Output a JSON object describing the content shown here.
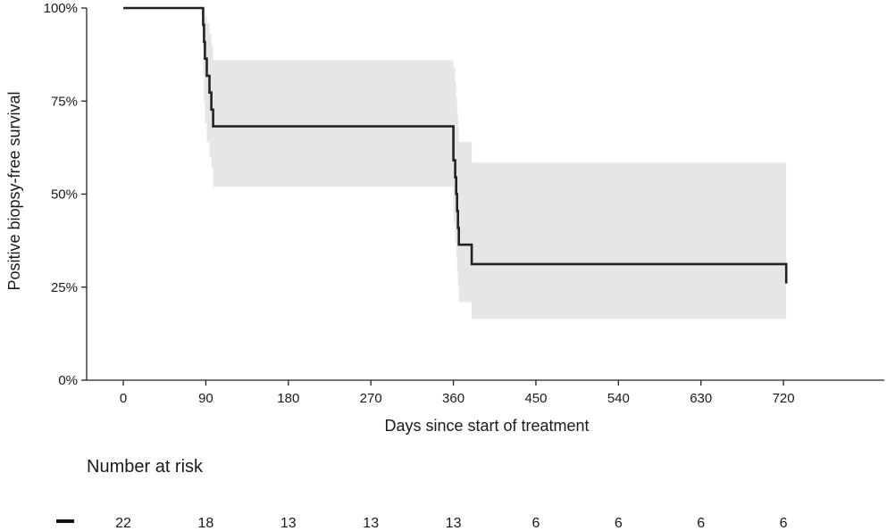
{
  "chart_data": {
    "type": "line",
    "subtype": "kaplan-meier step curve with confidence band",
    "ylabel": "Positive biopsy-free survival",
    "xlabel": "Days since start of treatment",
    "x_ticks": [
      0,
      90,
      180,
      270,
      360,
      450,
      540,
      630,
      720
    ],
    "x_tick_labels": [
      "0",
      "90",
      "180",
      "270",
      "360",
      "450",
      "540",
      "630",
      "720"
    ],
    "y_ticks": [
      0,
      0.25,
      0.5,
      0.75,
      1.0
    ],
    "y_tick_labels": [
      "0%",
      "25%",
      "50%",
      "75%",
      "100%"
    ],
    "xlim": [
      -40,
      830
    ],
    "ylim": [
      0,
      1
    ],
    "grid": false,
    "legend": "none",
    "curve_color": "#222222",
    "band_color": "#e6e6e6",
    "series": [
      {
        "x": [
          0,
          86,
          87,
          88,
          89,
          91,
          94,
          96,
          98,
          360,
          362,
          363,
          364,
          365,
          366,
          370,
          380,
          722,
          723
        ],
        "y": [
          1.0,
          1.0,
          0.955,
          0.909,
          0.864,
          0.818,
          0.773,
          0.727,
          0.682,
          0.591,
          0.545,
          0.5,
          0.455,
          0.409,
          0.364,
          0.364,
          0.312,
          0.312,
          0.26
        ],
        "ci_lower": [
          1.0,
          1.0,
          0.82,
          0.75,
          0.69,
          0.64,
          0.6,
          0.57,
          0.52,
          0.42,
          0.37,
          0.33,
          0.29,
          0.25,
          0.21,
          0.21,
          0.165,
          0.165,
          0.165
        ],
        "ci_upper": [
          1.0,
          1.0,
          1.0,
          1.0,
          0.98,
          0.96,
          0.93,
          0.9,
          0.86,
          0.84,
          0.8,
          0.76,
          0.72,
          0.68,
          0.64,
          0.64,
          0.585,
          0.585,
          0.585
        ]
      }
    ]
  },
  "risk_table": {
    "title": "Number at risk",
    "values": [
      "22",
      "18",
      "13",
      "13",
      "13",
      "6",
      "6",
      "6",
      "6"
    ]
  }
}
